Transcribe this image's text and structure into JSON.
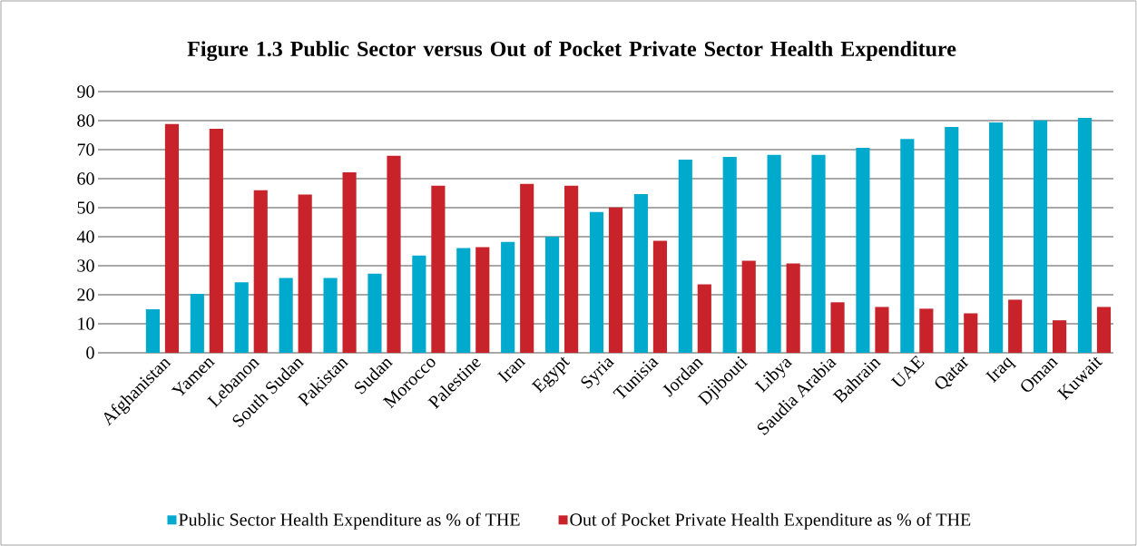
{
  "chart_data": {
    "type": "bar",
    "title": "Figure 1.3 Public Sector versus Out of Pocket Private Sector Health Expenditure",
    "categories": [
      "Afghanistan",
      "Yamen",
      "Lebanon",
      "South Sudan",
      "Pakistan",
      "Sudan",
      "Morocco",
      "Palestine",
      "Iran",
      "Egypt",
      "Syria",
      "Tunisia",
      "Jordan",
      "Djibouti",
      "Libya",
      "Saudia Arabia",
      "Bahrain",
      "UAE",
      "Qatar",
      "Iraq",
      "Oman",
      "Kuwait"
    ],
    "series": [
      {
        "name": "Public Sector Health Expenditure as % of THE",
        "color": "#00aacc",
        "values": [
          15.0,
          20.3,
          24.3,
          25.8,
          25.8,
          27.3,
          33.5,
          36.1,
          38.2,
          40.0,
          48.5,
          54.7,
          66.6,
          67.5,
          68.2,
          68.2,
          70.6,
          73.7,
          77.8,
          79.4,
          80.1,
          80.9
        ]
      },
      {
        "name": "Out of Pocket Private Health Expenditure as % of THE",
        "color": "#c8232a",
        "values": [
          78.8,
          77.2,
          56.0,
          54.5,
          62.2,
          67.9,
          57.6,
          36.4,
          58.2,
          57.6,
          50.1,
          38.6,
          23.6,
          31.7,
          30.8,
          17.4,
          15.8,
          15.2,
          13.6,
          18.3,
          11.2,
          15.8
        ]
      }
    ],
    "ylim": [
      0,
      90
    ],
    "yticks": [
      0,
      10,
      20,
      30,
      40,
      50,
      60,
      70,
      80,
      90
    ],
    "grid": "y",
    "legend": "bottom"
  }
}
